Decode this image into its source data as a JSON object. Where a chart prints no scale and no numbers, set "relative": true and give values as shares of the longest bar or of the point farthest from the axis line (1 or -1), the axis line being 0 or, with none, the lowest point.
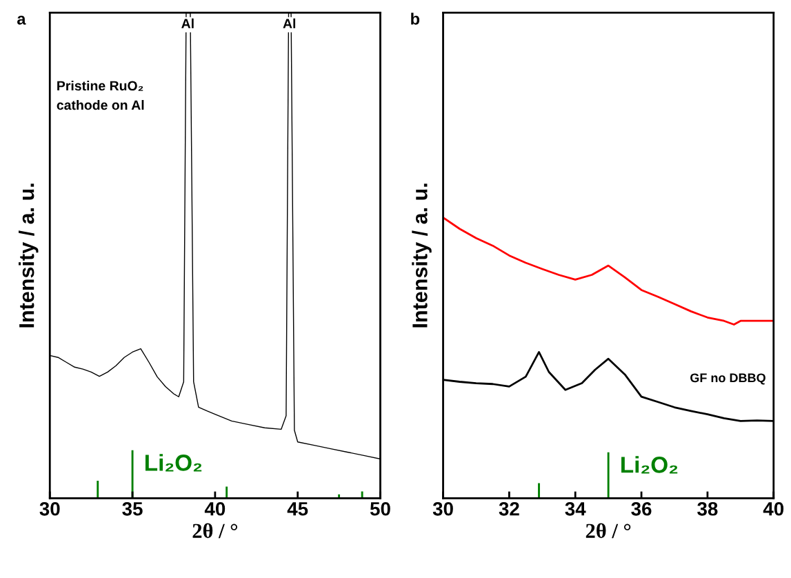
{
  "chart_data": [
    {
      "type": "line",
      "title": "a",
      "xlabel": "2θ / °",
      "ylabel": "Intensity / a. u.",
      "relative": true,
      "xlim": [
        30,
        50
      ],
      "xticks": [
        30,
        35,
        40,
        45,
        50
      ],
      "tick_labels": "x",
      "legend": false,
      "grid": false,
      "annotations": [
        {
          "text": "Al",
          "x": 38.35,
          "y": 1
        },
        {
          "text": "Al",
          "x": 44.5,
          "y": 1
        },
        "Pristine RuO₂\ncathode on Al"
      ],
      "series": [
        {
          "color": "#000000",
          "x": [
            30,
            30.5,
            31,
            31.5,
            32,
            32.5,
            33,
            33.5,
            34,
            34.5,
            35,
            35.5,
            36,
            36.5,
            37,
            37.5,
            37.8,
            38.1,
            38.25,
            38.5,
            38.7,
            39,
            39.5,
            40,
            41,
            42,
            43,
            44,
            44.3,
            44.45,
            44.6,
            44.8,
            45,
            46,
            47,
            48,
            49,
            50
          ],
          "values": [
            0.294,
            0.29,
            0.28,
            0.27,
            0.266,
            0.26,
            0.251,
            0.26,
            0.273,
            0.29,
            0.301,
            0.308,
            0.28,
            0.25,
            0.23,
            0.215,
            0.209,
            0.24,
            1,
            1,
            0.24,
            0.1875,
            0.18,
            0.173,
            0.159,
            0.152,
            0.145,
            0.142,
            0.17,
            1,
            1,
            0.14,
            0.116,
            0.109,
            0.102,
            0.095,
            0.088,
            0.081
          ]
        },
        {
          "type": "bar",
          "name": "Li₂O₂",
          "color": "#008000",
          "x": [
            32.9,
            35,
            40.7,
            47.5,
            48.9
          ],
          "values": [
            0.036,
            0.099,
            0.024,
            0.008,
            0.014
          ]
        }
      ]
    },
    {
      "type": "line",
      "title": "b",
      "xlabel": "2θ / °",
      "ylabel": "Intensity / a. u.",
      "relative": true,
      "xlim": [
        30,
        40
      ],
      "xticks": [
        30,
        32,
        34,
        36,
        38,
        40
      ],
      "tick_labels": "x",
      "legend": false,
      "grid": false,
      "series": [
        {
          "color": "#ff0000",
          "x": [
            30,
            30.5,
            31,
            31.5,
            32,
            32.5,
            33,
            33.5,
            34,
            34.5,
            35,
            35.5,
            36,
            36.5,
            37,
            37.5,
            38,
            38.5,
            38.8,
            39,
            39.5,
            40
          ],
          "values": [
            1,
            0.96,
            0.927,
            0.9,
            0.865,
            0.839,
            0.817,
            0.796,
            0.779,
            0.796,
            0.829,
            0.787,
            0.742,
            0.718,
            0.692,
            0.666,
            0.644,
            0.632,
            0.619,
            0.632,
            0.632,
            0.632
          ]
        },
        {
          "name": "GF no DBBQ",
          "color": "#000000",
          "x": [
            30,
            30.5,
            31,
            31.5,
            32,
            32.5,
            32.9,
            33.2,
            33.7,
            34.2,
            34.6,
            35,
            35.5,
            36,
            36.5,
            37,
            37.5,
            38,
            38.5,
            39,
            39.5,
            40
          ],
          "values": [
            0.422,
            0.415,
            0.41,
            0.407,
            0.398,
            0.433,
            0.521,
            0.45,
            0.386,
            0.41,
            0.458,
            0.497,
            0.441,
            0.362,
            0.343,
            0.324,
            0.311,
            0.299,
            0.285,
            0.275,
            0.277,
            0.275
          ]
        },
        {
          "type": "bar",
          "name": "Li₂O₂",
          "color": "#008000",
          "x": [
            32.9,
            35
          ],
          "values": [
            0.054,
            0.164
          ]
        }
      ]
    }
  ]
}
